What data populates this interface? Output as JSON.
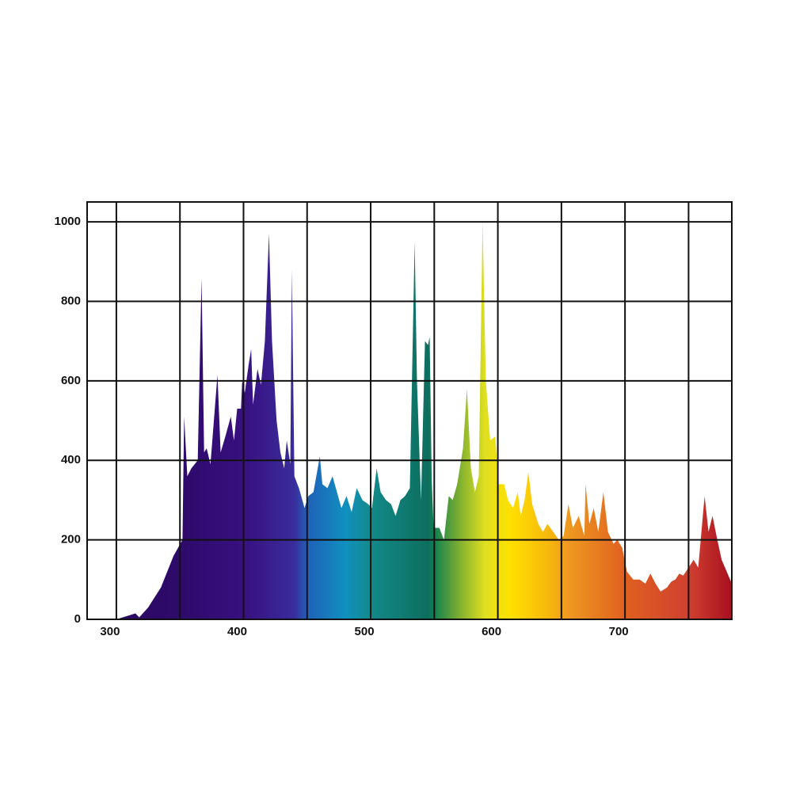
{
  "chart_data": {
    "type": "area",
    "x": [
      300,
      315,
      318,
      325,
      335,
      345,
      352,
      353.3,
      355.8,
      359,
      364,
      367,
      369,
      371,
      374,
      379.5,
      382,
      385.7,
      390,
      392.5,
      395,
      398,
      399,
      401,
      404,
      406,
      407.5,
      411,
      413.7,
      416.8,
      420,
      422.4,
      426,
      429,
      432,
      434,
      436.8,
      438,
      440,
      443.6,
      448,
      451,
      455,
      460,
      462,
      466,
      470,
      473.5,
      477,
      481,
      485,
      489,
      493.5,
      498,
      501,
      504.7,
      507.8,
      512,
      516,
      519.6,
      523.4,
      527,
      530.8,
      534.6,
      536.4,
      539.6,
      542.7,
      545,
      546.4,
      548,
      549.5,
      554,
      557.6,
      561.4,
      564.5,
      568,
      572.6,
      575.7,
      578.8,
      582,
      585,
      588,
      590.6,
      594,
      598,
      600.6,
      605,
      608,
      612,
      615.6,
      618,
      621,
      624,
      627,
      631.8,
      635.5,
      639,
      643.6,
      648,
      651.7,
      655.5,
      659,
      663.6,
      668,
      669,
      672,
      675.4,
      679,
      683,
      686.6,
      691,
      694,
      697.8,
      701.5,
      706.5,
      711.5,
      716,
      720,
      724,
      728,
      733,
      736.4,
      739.6,
      742.7,
      745.8,
      750,
      754,
      757.6,
      762.6,
      765.7,
      768.8,
      772.6,
      776,
      780,
      784
    ],
    "values": [
      0,
      15,
      5,
      30,
      80,
      160,
      200,
      510,
      360,
      380,
      400,
      860,
      420,
      430,
      390,
      615,
      420,
      460,
      510,
      450,
      530,
      530,
      600,
      570,
      640,
      680,
      540,
      630,
      590,
      700,
      970,
      700,
      500,
      420,
      380,
      450,
      390,
      880,
      360,
      330,
      280,
      310,
      320,
      410,
      340,
      330,
      360,
      320,
      280,
      310,
      270,
      330,
      300,
      290,
      280,
      380,
      320,
      300,
      290,
      260,
      300,
      310,
      330,
      950,
      600,
      300,
      700,
      690,
      710,
      350,
      230,
      230,
      200,
      310,
      300,
      340,
      430,
      580,
      380,
      320,
      360,
      1000,
      600,
      450,
      460,
      340,
      340,
      300,
      280,
      320,
      260,
      300,
      370,
      290,
      240,
      220,
      240,
      220,
      200,
      210,
      290,
      230,
      260,
      210,
      340,
      240,
      280,
      220,
      320,
      220,
      190,
      200,
      180,
      120,
      100,
      100,
      90,
      115,
      90,
      70,
      80,
      95,
      100,
      115,
      110,
      130,
      150,
      130,
      310,
      220,
      260,
      200,
      150,
      120,
      90
    ],
    "xlim": [
      277,
      784
    ],
    "ylim": [
      0,
      1050
    ],
    "xticks": [
      300,
      400,
      500,
      600,
      700
    ],
    "x_gridlines": [
      300,
      350,
      400,
      450,
      500,
      550,
      600,
      650,
      700,
      750
    ],
    "yticks": [
      0,
      200,
      400,
      600,
      800,
      1000
    ],
    "grid": true,
    "color_stops": [
      {
        "x": 277,
        "color": "#2a0a5e"
      },
      {
        "x": 350,
        "color": "#2e0a6a"
      },
      {
        "x": 400,
        "color": "#381080"
      },
      {
        "x": 440,
        "color": "#3a2c9c"
      },
      {
        "x": 450,
        "color": "#2060b8"
      },
      {
        "x": 480,
        "color": "#1090c0"
      },
      {
        "x": 500,
        "color": "#128a8a"
      },
      {
        "x": 545,
        "color": "#0e6e5e"
      },
      {
        "x": 550,
        "color": "#108050"
      },
      {
        "x": 570,
        "color": "#80b030"
      },
      {
        "x": 590,
        "color": "#e0e020"
      },
      {
        "x": 610,
        "color": "#ffe000"
      },
      {
        "x": 645,
        "color": "#f5b010"
      },
      {
        "x": 650,
        "color": "#f0a020"
      },
      {
        "x": 700,
        "color": "#e06020"
      },
      {
        "x": 750,
        "color": "#d04030"
      },
      {
        "x": 784,
        "color": "#a81020"
      }
    ]
  }
}
